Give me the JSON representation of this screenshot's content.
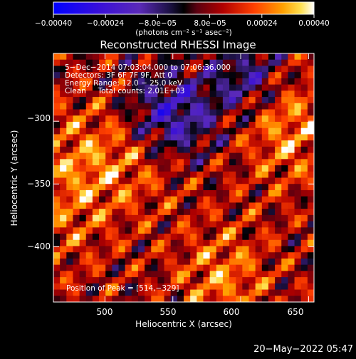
{
  "chart_data": {
    "type": "heatmap",
    "title": "Reconstructed RHESSI Image",
    "xlabel": "Heliocentric X (arcsec)",
    "ylabel": "Heliocentric Y (arcsec)",
    "xlim": [
      462,
      654
    ],
    "ylim": [
      -444,
      -246
    ],
    "x_ticks": [
      500,
      550,
      600,
      650
    ],
    "y_ticks": [
      -300,
      -350,
      -400
    ],
    "x_tick_labels": [
      "500",
      "550",
      "600",
      "650"
    ],
    "y_tick_labels": [
      "−300",
      "−350",
      "−400"
    ],
    "colorbar": {
      "range": [
        -0.0004,
        0.0004
      ],
      "tick_labels": [
        "−0.00040",
        "−0.00024",
        "−8.0e−05",
        "8.0e−05",
        "0.00024",
        "0.00040"
      ],
      "units": "(photons cm⁻² s⁻¹ asec⁻²)"
    },
    "annotations": {
      "time": "5−Dec−2014 07:03:04.000 to 07:06:36.000",
      "detectors": "Detectors: 3F 6F 7F 9F, Att 0",
      "energy": "Energy Range: 12.0 − 25.0 keV",
      "clean": "Clean     Total counts: 2.01E+03",
      "peak": "Position of Peak = [514,−329]"
    },
    "peak": [
      514,
      -329
    ]
  },
  "footer": {
    "timestamp": "20−May−2022 05:47"
  }
}
